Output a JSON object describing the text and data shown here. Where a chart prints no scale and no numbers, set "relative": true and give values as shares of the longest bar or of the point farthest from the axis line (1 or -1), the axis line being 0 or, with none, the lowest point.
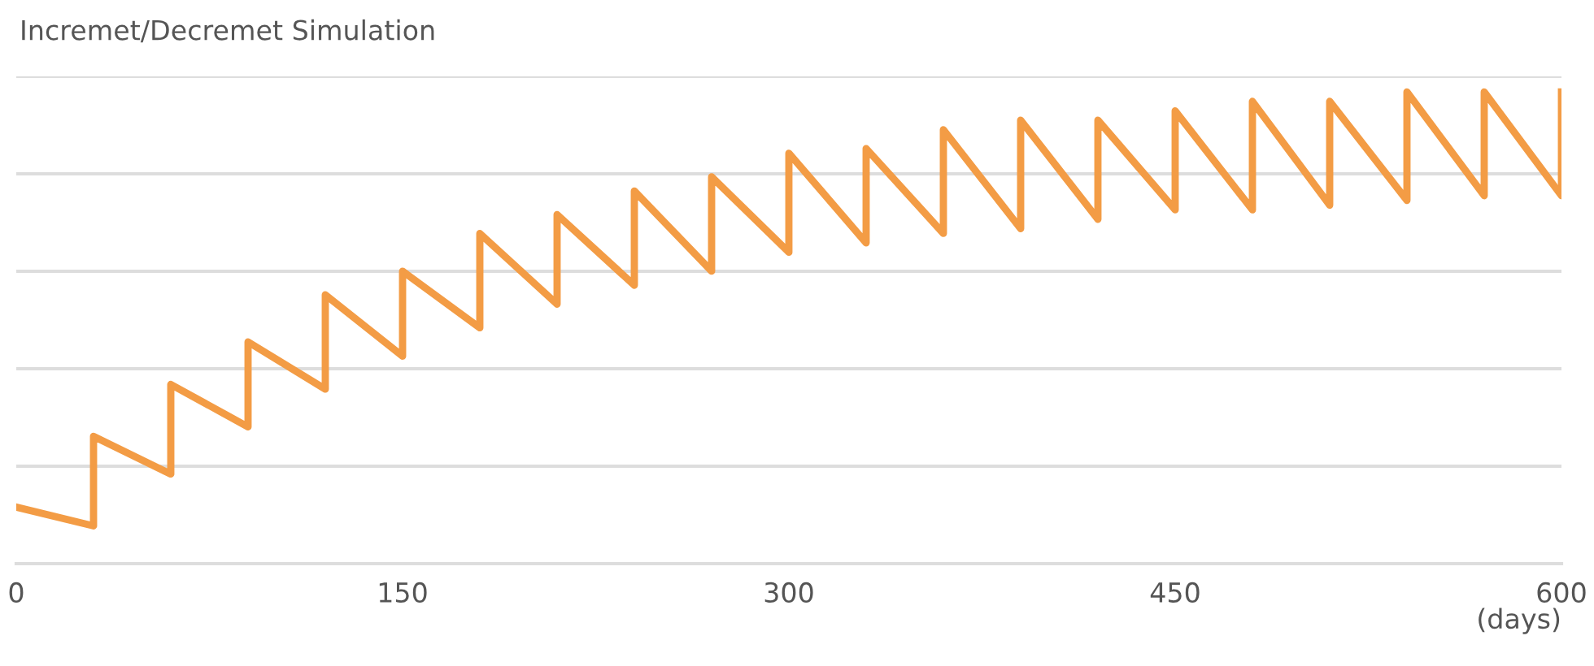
{
  "chart_data": {
    "type": "line",
    "title": "Incremet/Decremet Simulation",
    "xlabel": "(days)",
    "relative": true,
    "grid": "y",
    "marker": "none",
    "line_style": "solid",
    "legend": false,
    "xlim": [
      0,
      600
    ],
    "xticks": [
      0,
      150,
      300,
      450,
      600
    ],
    "series": [
      {
        "color": "#f39c45",
        "x": [
          0,
          30,
          30,
          60,
          60,
          90,
          90,
          120,
          120,
          150,
          150,
          180,
          180,
          210,
          210,
          240,
          240,
          270,
          270,
          300,
          300,
          330,
          330,
          360,
          360,
          390,
          390,
          420,
          420,
          450,
          450,
          480,
          480,
          510,
          510,
          540,
          540,
          570,
          570,
          600,
          600
        ],
        "values": [
          0.12,
          0.08,
          0.27,
          0.19,
          0.38,
          0.29,
          0.47,
          0.37,
          0.57,
          0.44,
          0.62,
          0.5,
          0.7,
          0.55,
          0.74,
          0.59,
          0.79,
          0.62,
          0.82,
          0.66,
          0.87,
          0.68,
          0.88,
          0.7,
          0.92,
          0.71,
          0.94,
          0.73,
          0.94,
          0.75,
          0.96,
          0.75,
          0.98,
          0.76,
          0.98,
          0.77,
          1.0,
          0.78,
          1.0,
          0.78,
          1.0
        ]
      }
    ]
  }
}
